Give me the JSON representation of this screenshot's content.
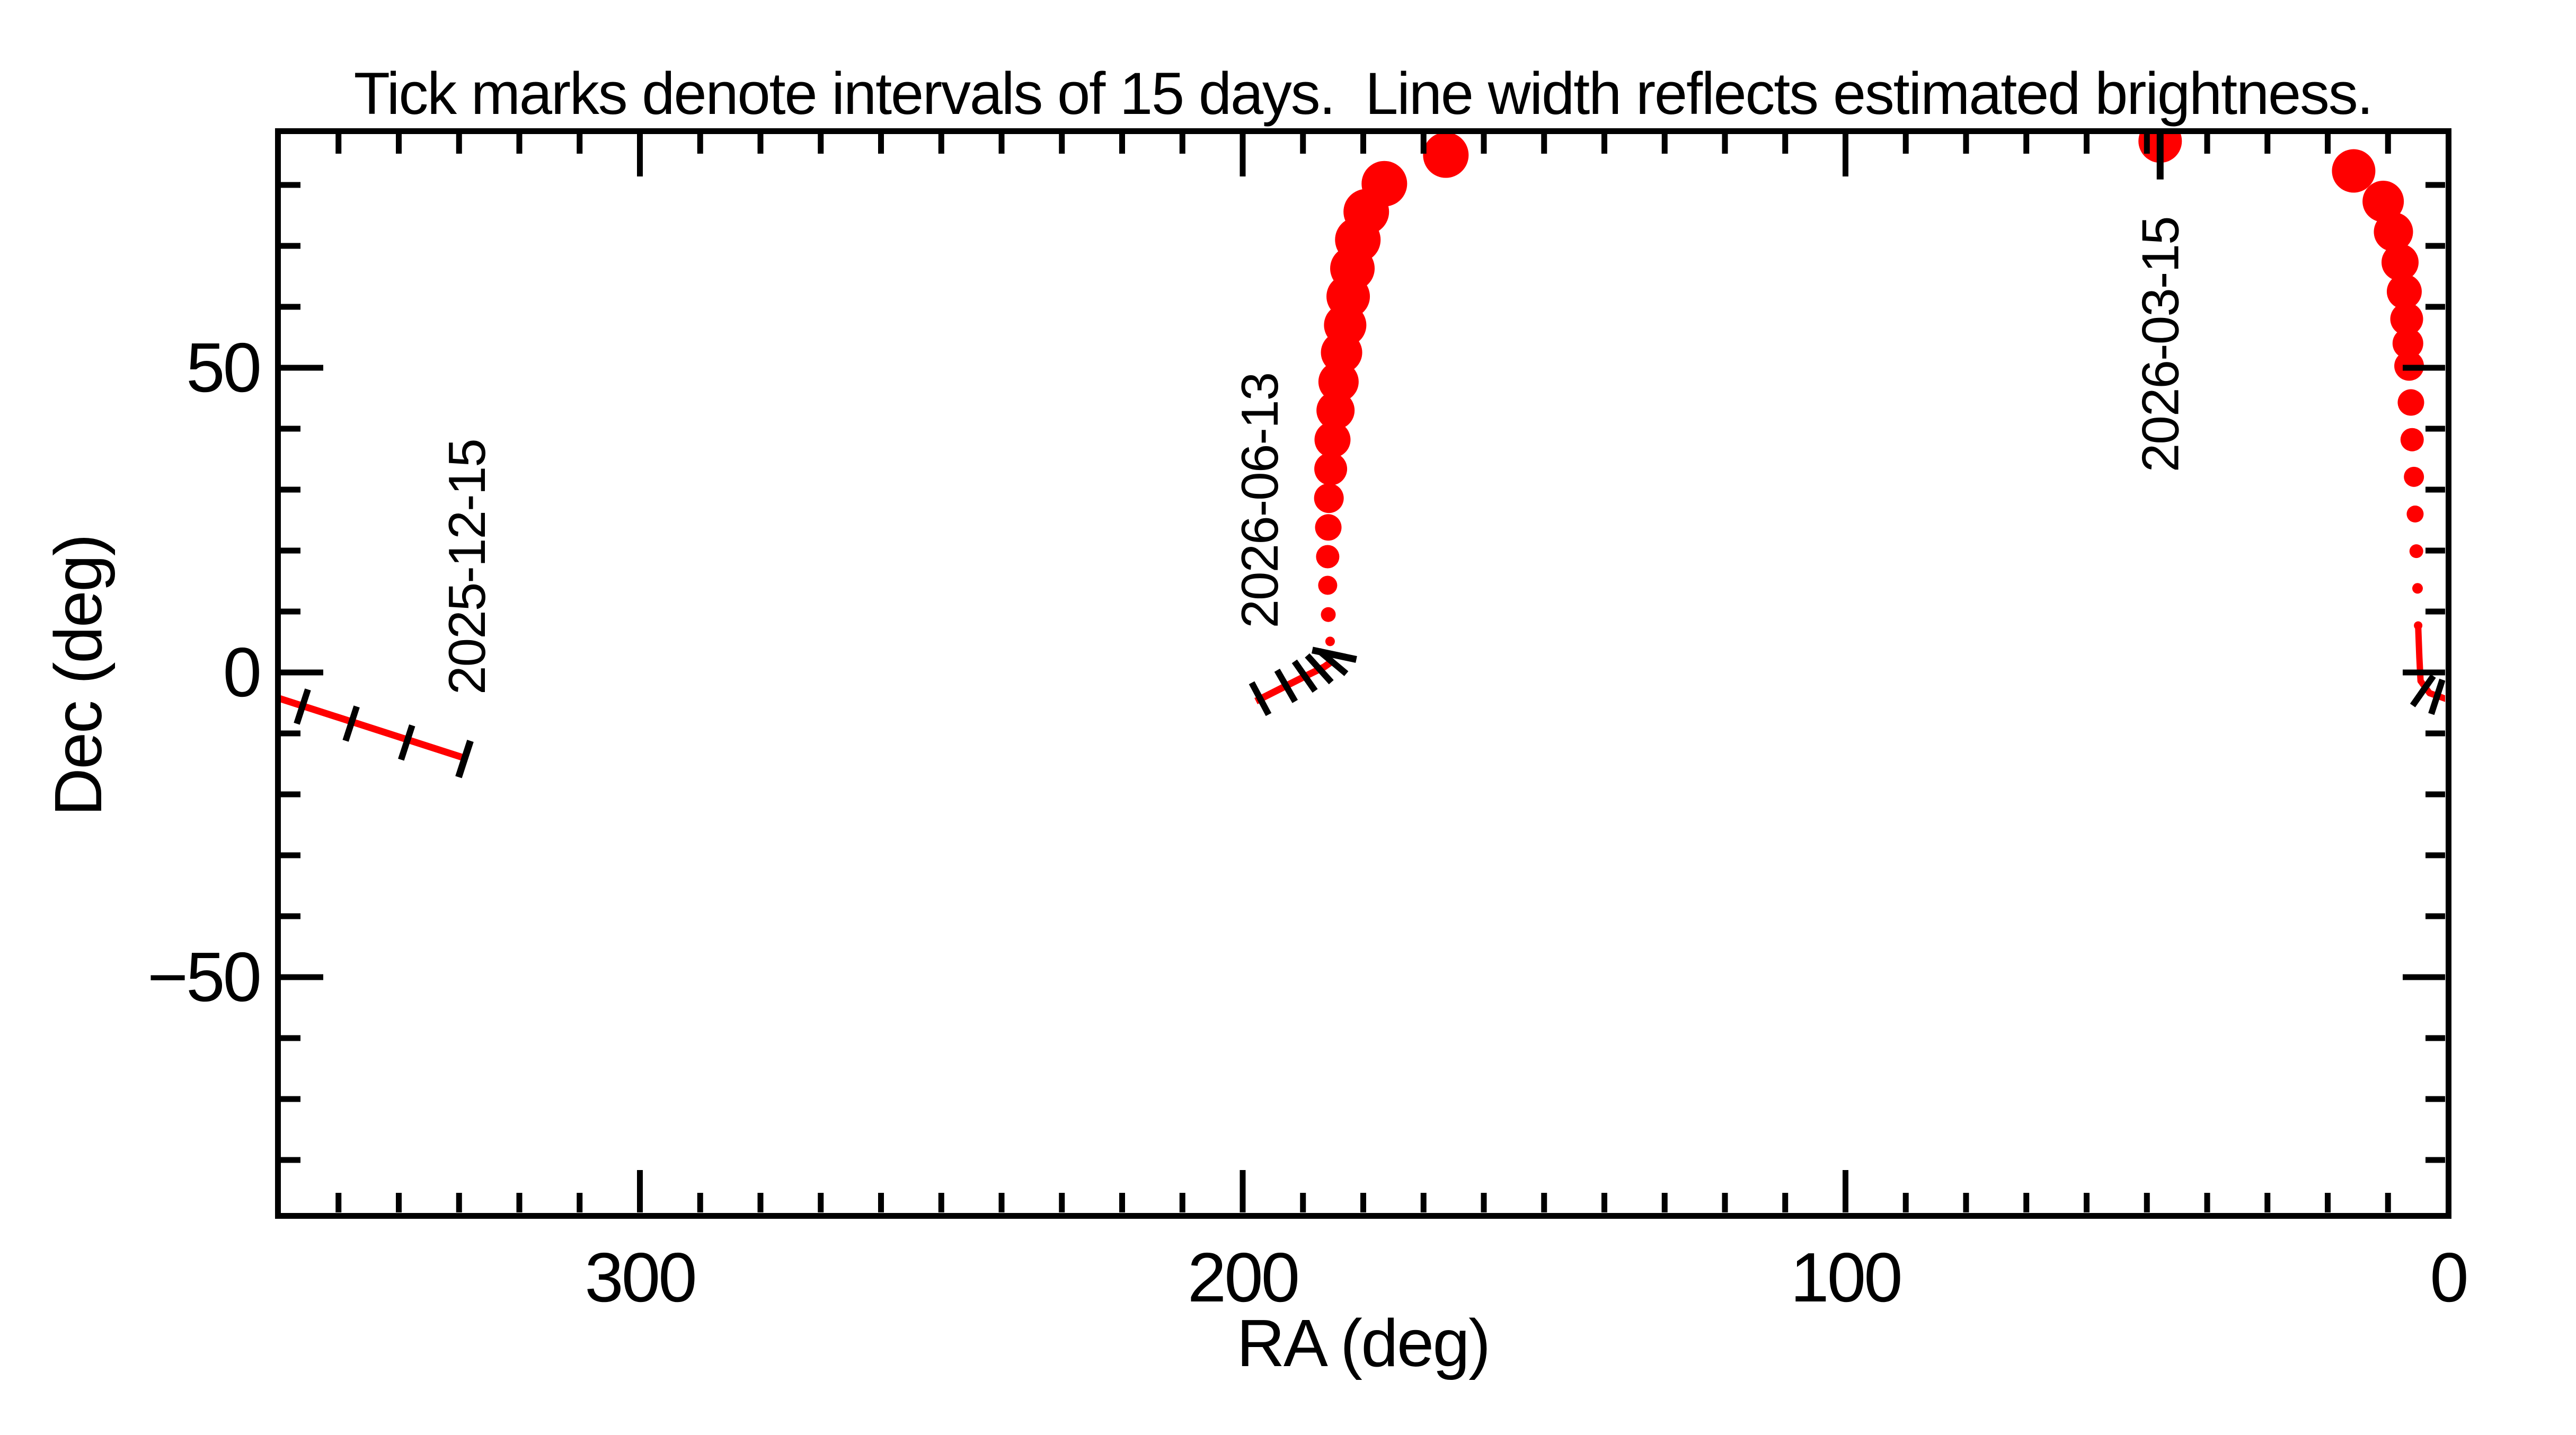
{
  "title": "Tick marks denote intervals of 15 days.  Line width reflects estimated brightness.",
  "colors": {
    "track": "#ff0000",
    "axis": "#000000",
    "background": "#ffffff"
  },
  "axes": {
    "x": {
      "label": "RA (deg)",
      "range": [
        360,
        0
      ],
      "reversed": true,
      "major_ticks": [
        300,
        200,
        100
      ],
      "minor_tick_step": 10,
      "tick_labels": [
        {
          "value": 300,
          "text": "300"
        },
        {
          "value": 200,
          "text": "200"
        },
        {
          "value": 100,
          "text": "100"
        },
        {
          "value": 0,
          "text": "0"
        }
      ]
    },
    "y": {
      "label": "Dec (deg)",
      "range": [
        88.9,
        -89.1
      ],
      "major_ticks": [
        50,
        0,
        -50
      ],
      "minor_tick_step": 10,
      "tick_labels": [
        {
          "value": 50,
          "text": "50"
        },
        {
          "value": 0,
          "text": "0"
        },
        {
          "value": -50,
          "text": "−50"
        }
      ]
    }
  },
  "chart_data": {
    "type": "scatter",
    "description": "Sky track of a moving object in RA/Dec. Symbol size (line width) encodes estimated brightness; small perpendicular black ticks mark 15-day intervals; labeled ticks give calendar dates.",
    "tracks": [
      {
        "name": "segment-2025-12",
        "line_width": 13,
        "line_points": [
          [
            360.0,
            -4.2
          ],
          [
            328.6,
            -14.2
          ]
        ],
        "dots": [],
        "interval_ticks": [
          {
            "ra": 356.0,
            "dec": -5.6,
            "rot": 18
          },
          {
            "ra": 347.9,
            "dec": -8.4,
            "rot": 18
          },
          {
            "ra": 338.7,
            "dec": -11.5,
            "rot": 18
          }
        ],
        "date_tick": {
          "ra": 329.1,
          "dec": -14.2,
          "rot": 18,
          "len": 72
        },
        "date_label": {
          "text": "2025-12-15",
          "ra": 328.7,
          "dec": 17.3
        }
      },
      {
        "name": "segment-2026-06",
        "line_width": 13,
        "line_points": [
          [
            197.8,
            -4.7
          ],
          [
            190.0,
            -0.8
          ],
          [
            186.5,
            0.9
          ],
          [
            185.2,
            1.8
          ]
        ],
        "dots": [
          [
            185.2,
            1.8,
            5
          ],
          [
            185.5,
            5.1,
            9
          ],
          [
            185.8,
            9.5,
            14
          ],
          [
            185.9,
            14.3,
            18
          ],
          [
            185.9,
            19.0,
            22
          ],
          [
            185.8,
            23.8,
            25
          ],
          [
            185.7,
            28.6,
            28
          ],
          [
            185.4,
            33.4,
            31
          ],
          [
            185.1,
            38.2,
            34
          ],
          [
            184.6,
            43.0,
            36
          ],
          [
            184.1,
            47.7,
            38
          ],
          [
            183.6,
            52.5,
            39
          ],
          [
            183.0,
            57.0,
            40
          ],
          [
            182.5,
            61.7,
            41
          ],
          [
            181.8,
            66.3,
            42
          ],
          [
            180.9,
            71.0,
            43
          ],
          [
            179.5,
            75.6,
            43
          ],
          [
            176.5,
            80.2,
            43
          ],
          [
            166.3,
            84.9,
            43
          ]
        ],
        "interval_ticks": [
          {
            "ra": 197.1,
            "dec": -4.3,
            "rot": -28
          },
          {
            "ra": 192.8,
            "dec": -2.2,
            "rot": -30
          },
          {
            "ra": 189.7,
            "dec": -0.6,
            "rot": -35
          },
          {
            "ra": 187.3,
            "dec": 0.6,
            "rot": -42
          },
          {
            "ra": 185.1,
            "dec": 1.7,
            "rot": -50
          }
        ],
        "date_tick": {
          "ra": 184.8,
          "dec": 2.9,
          "rot": -78,
          "len": 85
        },
        "date_label": {
          "text": "2026-06-13",
          "ra": 197.2,
          "dec": 28.2
        }
      },
      {
        "name": "segment-2026-03",
        "line_width": 12,
        "line_points": [
          [
            5.0,
            7.7
          ],
          [
            4.8,
            2.5
          ],
          [
            4.6,
            -1.4
          ],
          [
            3.1,
            -3.4
          ],
          [
            0.2,
            -4.4
          ]
        ],
        "dots": [
          [
            47.8,
            87.2,
            41
          ],
          [
            15.7,
            82.3,
            41
          ],
          [
            10.8,
            77.3,
            39
          ],
          [
            9.1,
            72.3,
            37
          ],
          [
            8.0,
            67.3,
            35
          ],
          [
            7.3,
            62.5,
            33
          ],
          [
            6.9,
            58.0,
            31
          ],
          [
            6.7,
            54.0,
            29
          ],
          [
            6.5,
            50.3,
            28
          ],
          [
            6.2,
            44.3,
            25
          ],
          [
            6.0,
            38.2,
            22
          ],
          [
            5.7,
            32.1,
            19
          ],
          [
            5.5,
            26.0,
            16
          ],
          [
            5.3,
            19.9,
            13
          ],
          [
            5.1,
            13.8,
            10
          ],
          [
            5.0,
            7.7,
            8
          ]
        ],
        "interval_ticks": [
          {
            "ra": 4.2,
            "dec": -3.0,
            "rot": 35
          },
          {
            "ra": 1.9,
            "dec": -4.0,
            "rot": 18
          }
        ],
        "date_tick": {
          "ra": 47.8,
          "dec": 84.9,
          "rot": 0,
          "len": 92
        },
        "date_label": {
          "text": "2026-03-15",
          "ra": 47.8,
          "dec": 53.8
        }
      }
    ],
    "annotations": [
      "2025-12-15",
      "2026-06-13",
      "2026-03-15"
    ],
    "legend": "none",
    "grid": false
  }
}
